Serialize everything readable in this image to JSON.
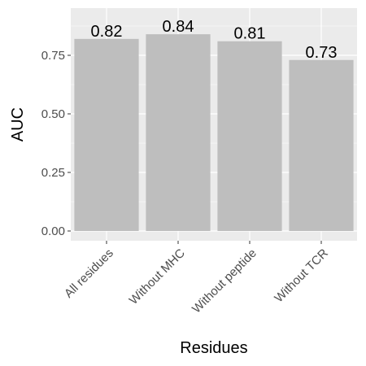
{
  "chart_data": {
    "type": "bar",
    "categories": [
      "All residues",
      "Without MHC",
      "Without peptide",
      "Without TCR"
    ],
    "values": [
      0.82,
      0.84,
      0.81,
      0.73
    ],
    "data_labels": [
      "0.82",
      "0.84",
      "0.81",
      "0.73"
    ],
    "xlabel": "Residues",
    "ylabel": "AUC",
    "ylim": [
      0,
      0.86
    ],
    "yticks": [
      0.0,
      0.25,
      0.5,
      0.75
    ],
    "ytick_labels": [
      "0.00",
      "0.25",
      "0.50",
      "0.75"
    ],
    "grid": true,
    "legend": "none"
  },
  "colors": {
    "panel_background": "#ebebeb",
    "grid_major": "#ffffff",
    "bar_fill": "#bebebe",
    "tick_text": "#4d4d4d"
  }
}
